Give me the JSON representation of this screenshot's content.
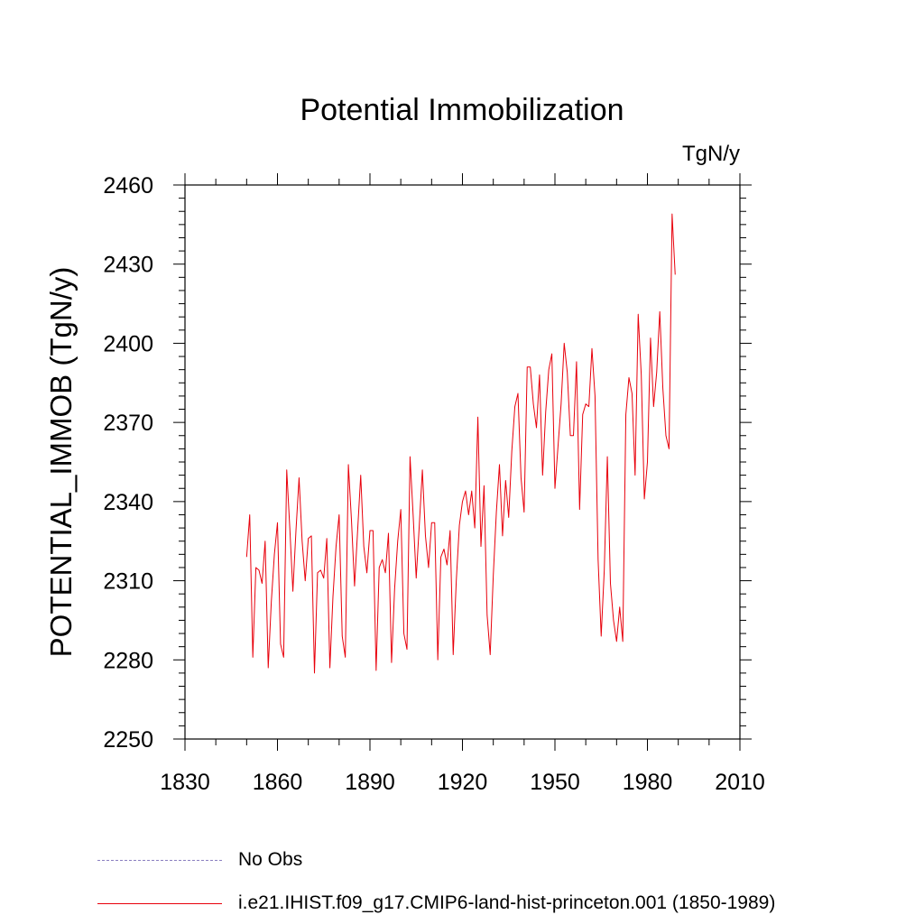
{
  "chart_data": {
    "type": "line",
    "title": "Potential Immobilization",
    "units_label": "TgN/y",
    "ylabel": "POTENTIAL_IMMOB  (TgN/y)",
    "xlabel": "",
    "xlim": [
      1830,
      2010
    ],
    "ylim": [
      2250,
      2460
    ],
    "x_ticks": [
      1830,
      1860,
      1890,
      1920,
      1950,
      1980,
      2010
    ],
    "y_ticks": [
      2250,
      2280,
      2310,
      2340,
      2370,
      2400,
      2430,
      2460
    ],
    "legend_placement": "bottom-left, below plot",
    "legend": [
      {
        "label": "No Obs",
        "style": "dashed",
        "color": "#8a7fc0"
      },
      {
        "label": "i.e21.IHIST.f09_g17.CMIP6-land-hist-princeton.001 (1850-1989)",
        "style": "solid",
        "color": "#e8000b"
      }
    ],
    "series": [
      {
        "name": "i.e21.IHIST.f09_g17.CMIP6-land-hist-princeton.001 (1850-1989)",
        "color": "#e8000b",
        "x_start": 1850,
        "values": [
          2319,
          2335,
          2281,
          2315,
          2314,
          2309,
          2325,
          2277,
          2302,
          2320,
          2332,
          2286,
          2281,
          2352,
          2330,
          2306,
          2329,
          2349,
          2325,
          2310,
          2326,
          2327,
          2275,
          2313,
          2314,
          2311,
          2326,
          2277,
          2304,
          2323,
          2335,
          2289,
          2281,
          2354,
          2333,
          2308,
          2329,
          2350,
          2323,
          2313,
          2329,
          2329,
          2276,
          2315,
          2318,
          2313,
          2328,
          2279,
          2307,
          2325,
          2337,
          2290,
          2284,
          2357,
          2335,
          2311,
          2331,
          2352,
          2327,
          2315,
          2332,
          2332,
          2280,
          2319,
          2322,
          2316,
          2329,
          2282,
          2310,
          2331,
          2340,
          2344,
          2335,
          2344,
          2330,
          2372,
          2323,
          2346,
          2297,
          2282,
          2312,
          2336,
          2354,
          2327,
          2348,
          2334,
          2359,
          2376,
          2381,
          2349,
          2336,
          2391,
          2391,
          2377,
          2368,
          2388,
          2350,
          2374,
          2390,
          2396,
          2345,
          2361,
          2377,
          2400,
          2389,
          2365,
          2365,
          2393,
          2337,
          2373,
          2377,
          2376,
          2398,
          2380,
          2318,
          2289,
          2314,
          2357,
          2309,
          2295,
          2287,
          2300,
          2287,
          2373,
          2387,
          2381,
          2350,
          2411,
          2388,
          2341,
          2355,
          2402,
          2376,
          2389,
          2412,
          2383,
          2365,
          2360,
          2449,
          2426
        ]
      }
    ]
  }
}
